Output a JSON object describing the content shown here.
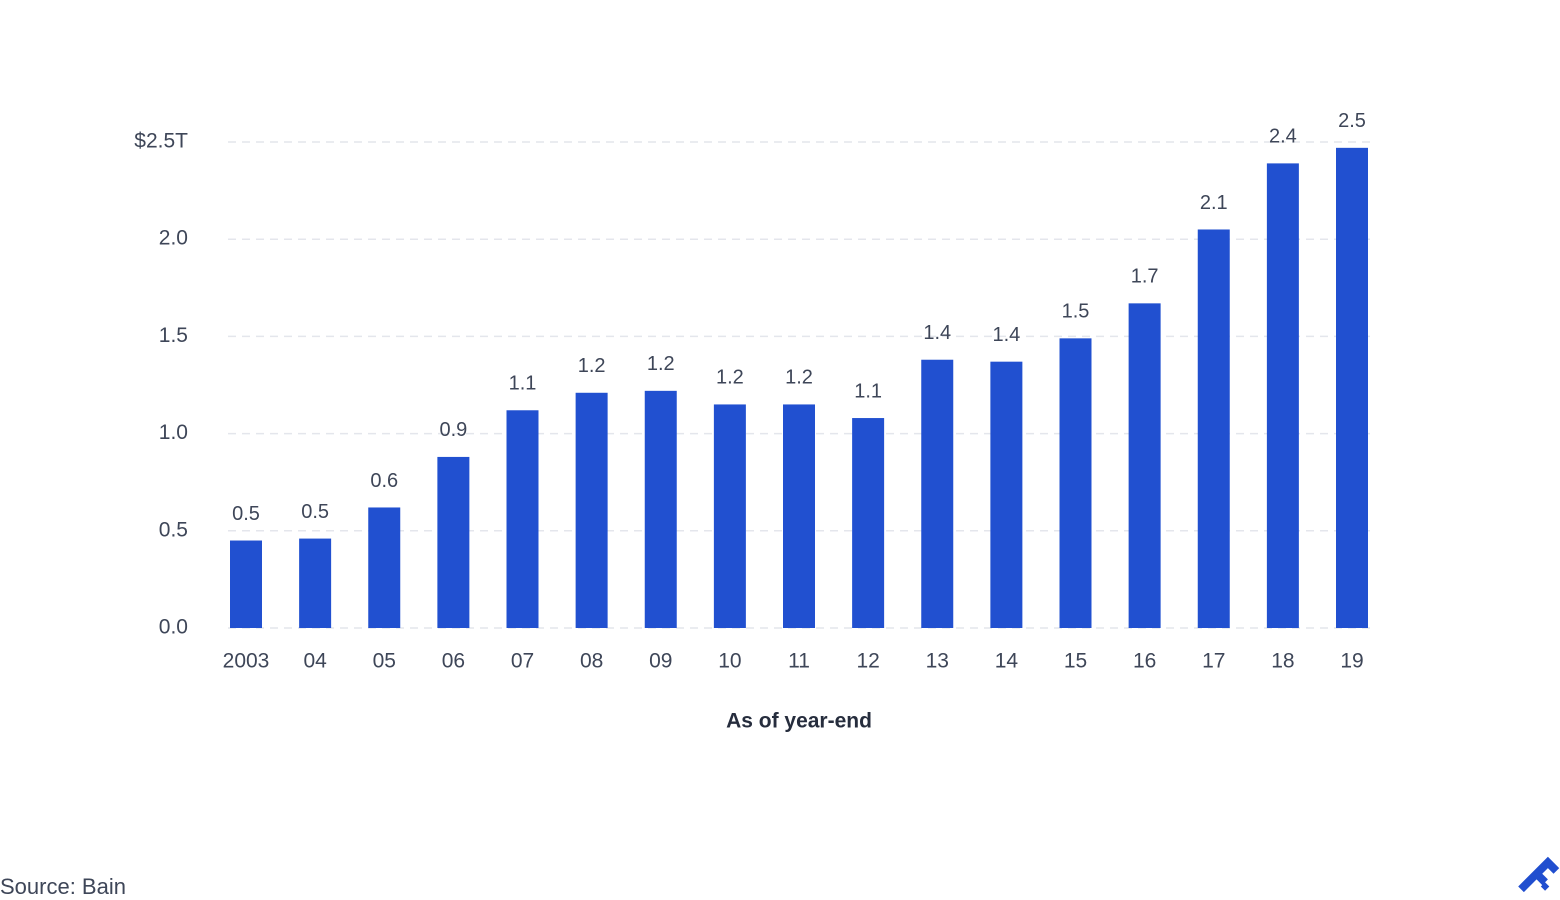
{
  "chart_data": {
    "type": "bar",
    "categories": [
      "2003",
      "04",
      "05",
      "06",
      "07",
      "08",
      "09",
      "10",
      "11",
      "12",
      "13",
      "14",
      "15",
      "16",
      "17",
      "18",
      "19"
    ],
    "values": [
      0.45,
      0.46,
      0.62,
      0.88,
      1.12,
      1.21,
      1.22,
      1.15,
      1.15,
      1.08,
      1.38,
      1.37,
      1.49,
      1.67,
      2.05,
      2.39,
      2.47
    ],
    "value_labels": [
      "0.5",
      "0.5",
      "0.6",
      "0.9",
      "1.1",
      "1.2",
      "1.2",
      "1.2",
      "1.2",
      "1.1",
      "1.4",
      "1.4",
      "1.5",
      "1.7",
      "2.1",
      "2.4",
      "2.5"
    ],
    "color": "#2150d0",
    "ylim": [
      0,
      2.5
    ],
    "yticks": [
      {
        "value": 0,
        "label": "0.0"
      },
      0.5,
      {
        "value": 1,
        "label": "1.0"
      },
      1.5,
      {
        "value": 2,
        "label": "2.0"
      },
      {
        "value": 2.5,
        "label": "$2.5T"
      }
    ],
    "grid": true,
    "xlabel": "As of year-end",
    "source": "Source: Bain"
  }
}
